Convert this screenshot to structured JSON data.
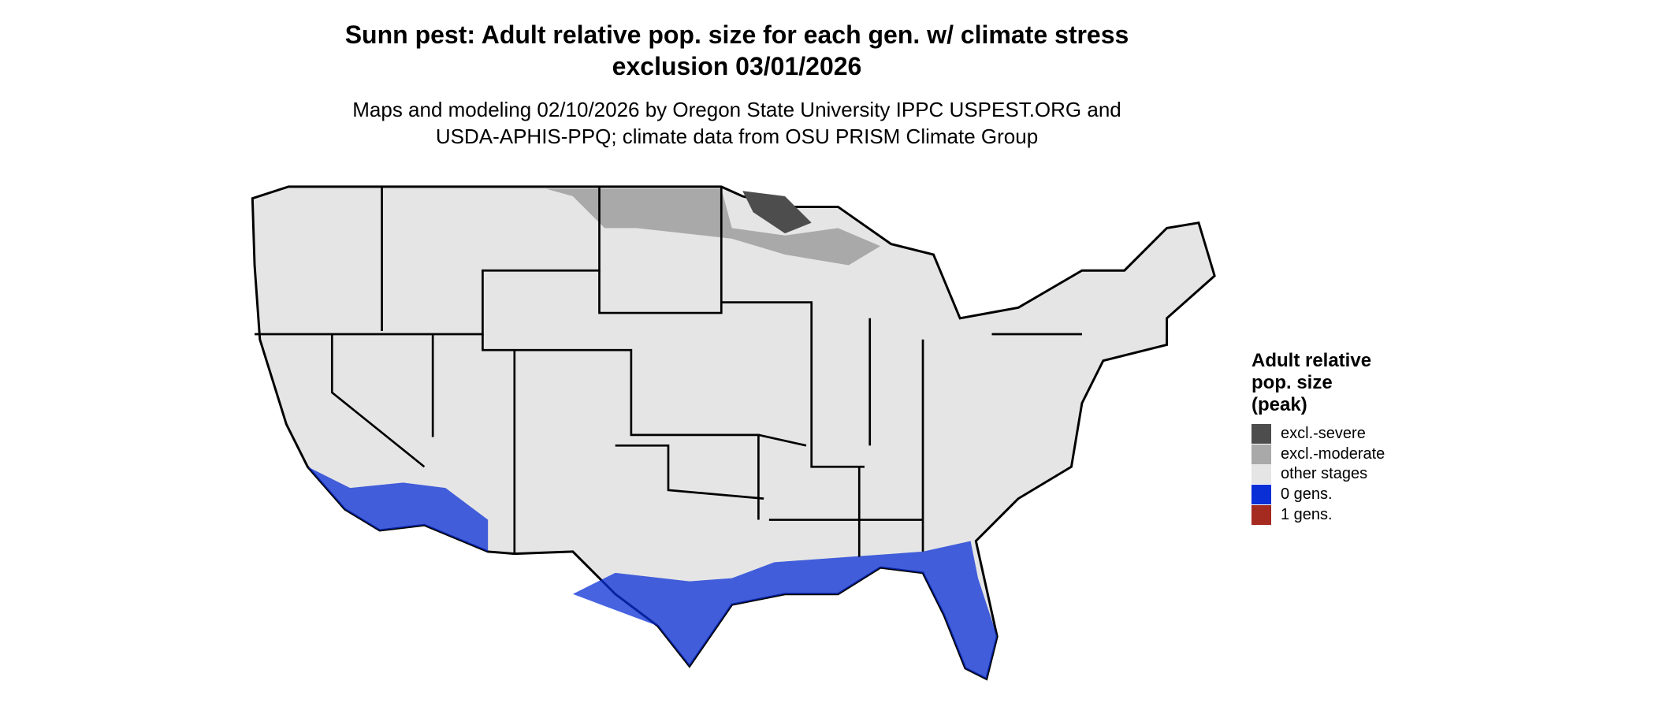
{
  "title": "Sunn pest: Adult relative pop. size for each gen. w/ climate stress exclusion 03/01/2026",
  "subtitle": "Maps and modeling 02/10/2026 by Oregon State University IPPC USPEST.ORG and USDA-APHIS-PPQ; climate data from OSU PRISM Climate Group",
  "legend": {
    "title": "Adult relative pop. size (peak)",
    "items": [
      {
        "label": "excl.-severe",
        "color": "#4d4d4d"
      },
      {
        "label": "excl.-moderate",
        "color": "#a9a9a9"
      },
      {
        "label": "other stages",
        "color": "#e5e5e5"
      },
      {
        "label": "0 gens.",
        "color": "#0a2fd6"
      },
      {
        "label": "1 gens.",
        "color": "#a52a1f"
      }
    ]
  }
}
